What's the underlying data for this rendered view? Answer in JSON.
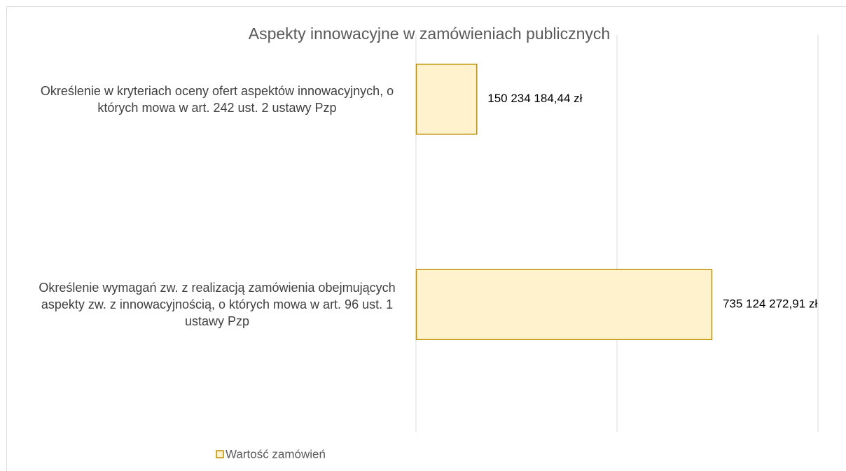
{
  "chart_data": {
    "type": "bar",
    "orientation": "horizontal",
    "title": "Aspekty innowacyjne w zamówieniach publicznych",
    "categories": [
      "Określenie w kryteriach oceny ofert aspektów innowacyjnych, o których mowa w art. 242 ust. 2 ustawy Pzp",
      "Określenie wymagań zw. z realizacją zamówienia obejmujących aspekty zw. z innowacyjnością, o których mowa w art. 96 ust. 1 ustawy Pzp"
    ],
    "series": [
      {
        "name": "Wartość zamówień",
        "color": "#fff2cc",
        "edgecolor": "#bf9000",
        "values": [
          150234184.44,
          735124272.91
        ],
        "value_labels": [
          "150 234 184,44 zł",
          "735 124 272,91 zł"
        ]
      }
    ],
    "xlim": [
      0,
      1000000000
    ],
    "xticks": [
      0,
      500000000,
      1000000000
    ],
    "grid": true,
    "legend": "bottom"
  }
}
